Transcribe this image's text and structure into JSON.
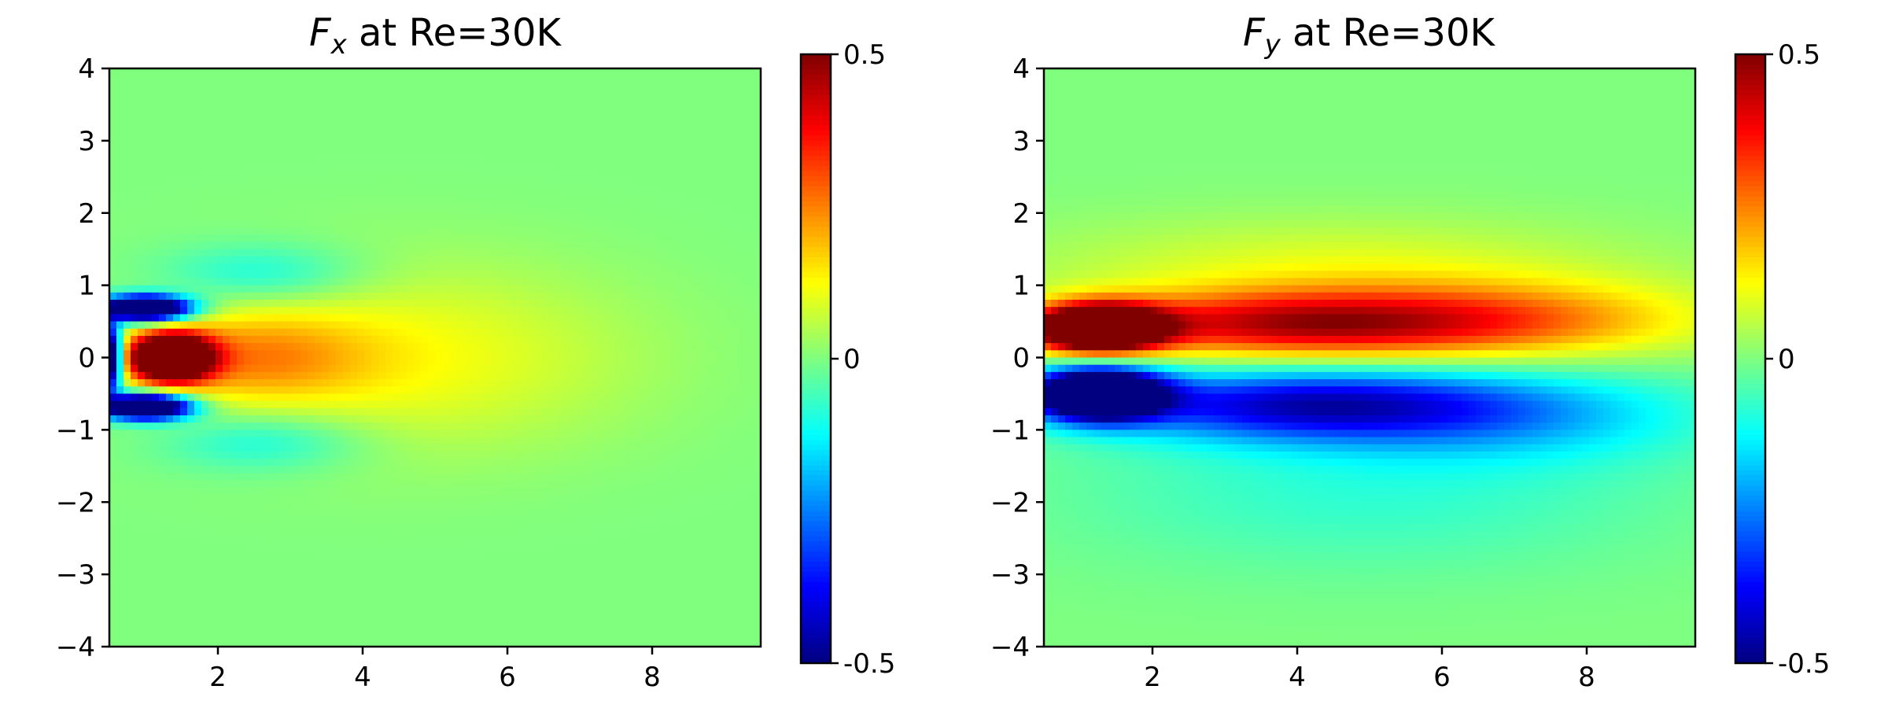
{
  "chart_data": [
    {
      "type": "heatmap",
      "title_var": "F",
      "title_sub": "x",
      "title_rest": " at Re=30K",
      "xlim": [
        0.5,
        9.5
      ],
      "ylim": [
        -4,
        4
      ],
      "xticks": [
        2,
        4,
        6,
        8
      ],
      "yticks": [
        -4,
        -3,
        -2,
        -1,
        0,
        1,
        2,
        3,
        4
      ],
      "ytick_labels": [
        "−4",
        "−3",
        "−2",
        "−1",
        "0",
        "1",
        "2",
        "3",
        "4"
      ],
      "colorbar": {
        "vmin": -0.5,
        "vmax": 0.5,
        "ticks": [
          0.5,
          0,
          -0.5
        ],
        "tick_labels": [
          "0.5",
          "0",
          "-0.5"
        ],
        "colormap": "jet"
      },
      "field_description": "strong positive core near x=1.2,y=0; negative lobes near y=+/-0.6 at x=0.5-1.5; weak positive wake downstream",
      "features": [
        {
          "x": 1.3,
          "y": 0.0,
          "value": 0.5
        },
        {
          "x": 1.0,
          "y": 0.65,
          "value": -0.5
        },
        {
          "x": 1.0,
          "y": -0.65,
          "value": -0.5
        },
        {
          "x": 0.55,
          "y": 0.0,
          "value": -0.45
        },
        {
          "x": 3.5,
          "y": 0.0,
          "value": 0.12
        },
        {
          "x": 2.5,
          "y": 1.1,
          "value": -0.08
        },
        {
          "x": 2.5,
          "y": -1.1,
          "value": -0.08
        }
      ]
    },
    {
      "type": "heatmap",
      "title_var": "F",
      "title_sub": "y",
      "title_rest": " at Re=30K",
      "xlim": [
        0.5,
        9.5
      ],
      "ylim": [
        -4,
        4
      ],
      "xticks": [
        2,
        4,
        6,
        8
      ],
      "yticks": [
        -4,
        -3,
        -2,
        -1,
        0,
        1,
        2,
        3,
        4
      ],
      "ytick_labels": [
        "−4",
        "−3",
        "−2",
        "−1",
        "0",
        "1",
        "2",
        "3",
        "4"
      ],
      "colorbar": {
        "vmin": -0.5,
        "vmax": 0.5,
        "ticks": [
          0.5,
          0,
          -0.5
        ],
        "tick_labels": [
          "0.5",
          "0",
          "-0.5"
        ],
        "colormap": "jet"
      },
      "field_description": "antisymmetric: strong positive region above centerline, strong negative below, both decaying downstream",
      "features": [
        {
          "x": 1.3,
          "y": 0.4,
          "value": 0.5
        },
        {
          "x": 1.3,
          "y": -0.5,
          "value": -0.5
        },
        {
          "x": 5.0,
          "y": 0.5,
          "value": 0.28
        },
        {
          "x": 5.0,
          "y": -0.7,
          "value": -0.25
        },
        {
          "x": 8.0,
          "y": 0.5,
          "value": 0.15
        },
        {
          "x": 8.0,
          "y": -0.8,
          "value": -0.1
        }
      ]
    }
  ]
}
